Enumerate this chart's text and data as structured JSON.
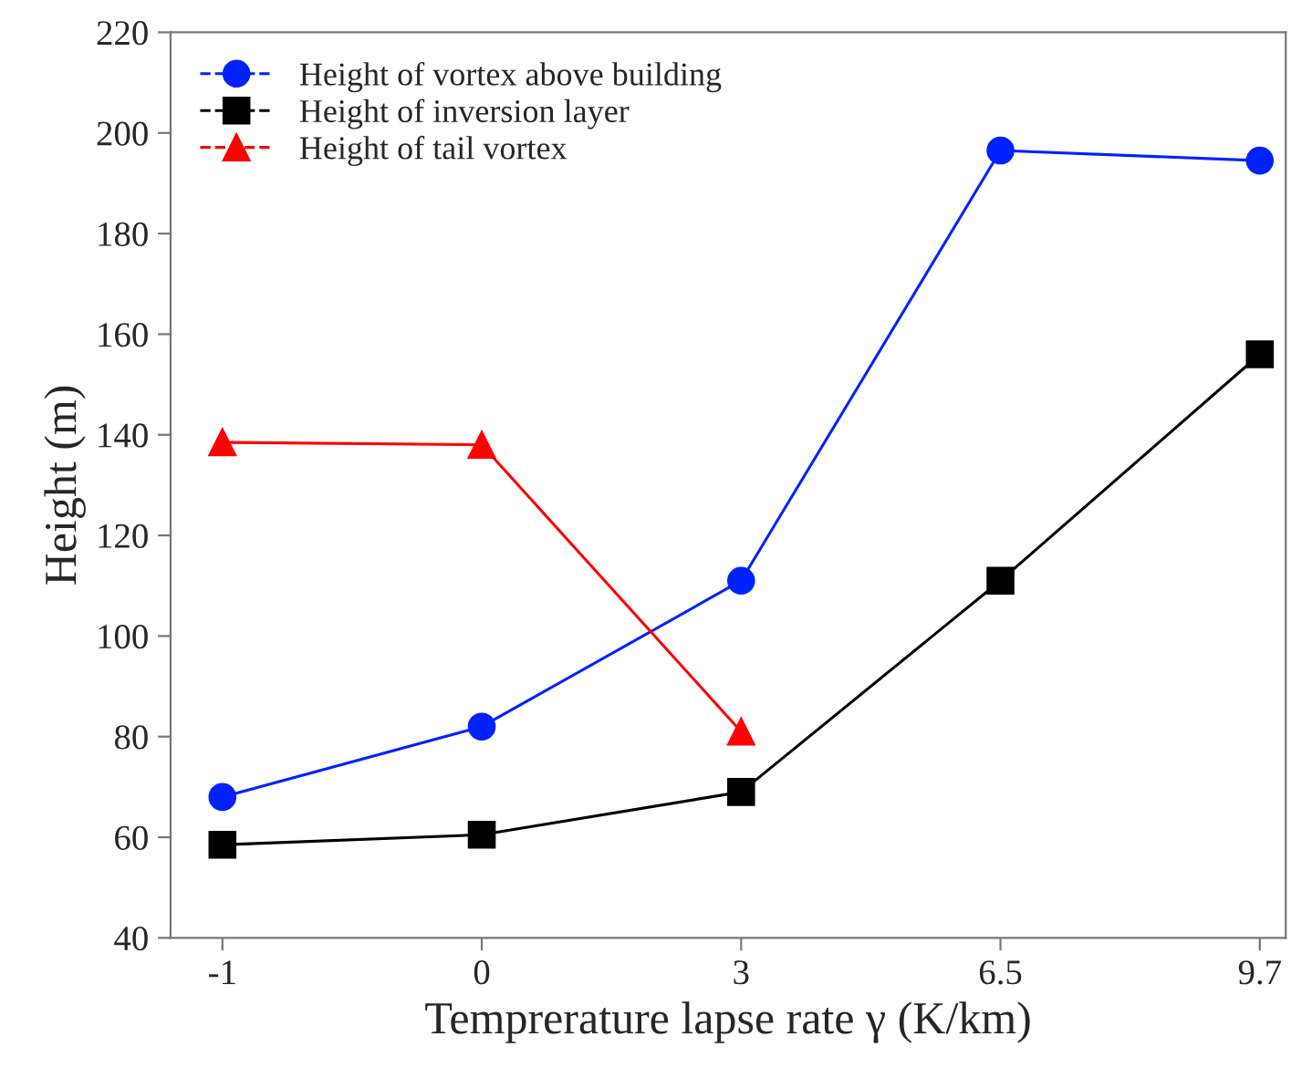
{
  "chart_data": {
    "type": "line",
    "xlabel": "Temprerature lapse rate γ (K/km)",
    "ylabel": "Height (m)",
    "categories": [
      "-1",
      "0",
      "3",
      "6.5",
      "9.7"
    ],
    "series": [
      {
        "name": "Height of vortex above building",
        "color": "#0022ff",
        "marker": "circle",
        "values": [
          68,
          82,
          111,
          196.5,
          194.5
        ]
      },
      {
        "name": "Height of inversion layer",
        "color": "#000000",
        "marker": "square",
        "values": [
          58.5,
          60.5,
          69,
          111,
          156
        ]
      },
      {
        "name": "Height of tail vortex",
        "color": "#ff0000",
        "marker": "triangle",
        "values": [
          138.5,
          138,
          81,
          null,
          null
        ]
      }
    ],
    "ylim": [
      40,
      220
    ],
    "yticks": [
      40,
      60,
      80,
      100,
      120,
      140,
      160,
      180,
      200,
      220
    ],
    "grid": false,
    "legend": "top left",
    "line_style": "solid"
  }
}
